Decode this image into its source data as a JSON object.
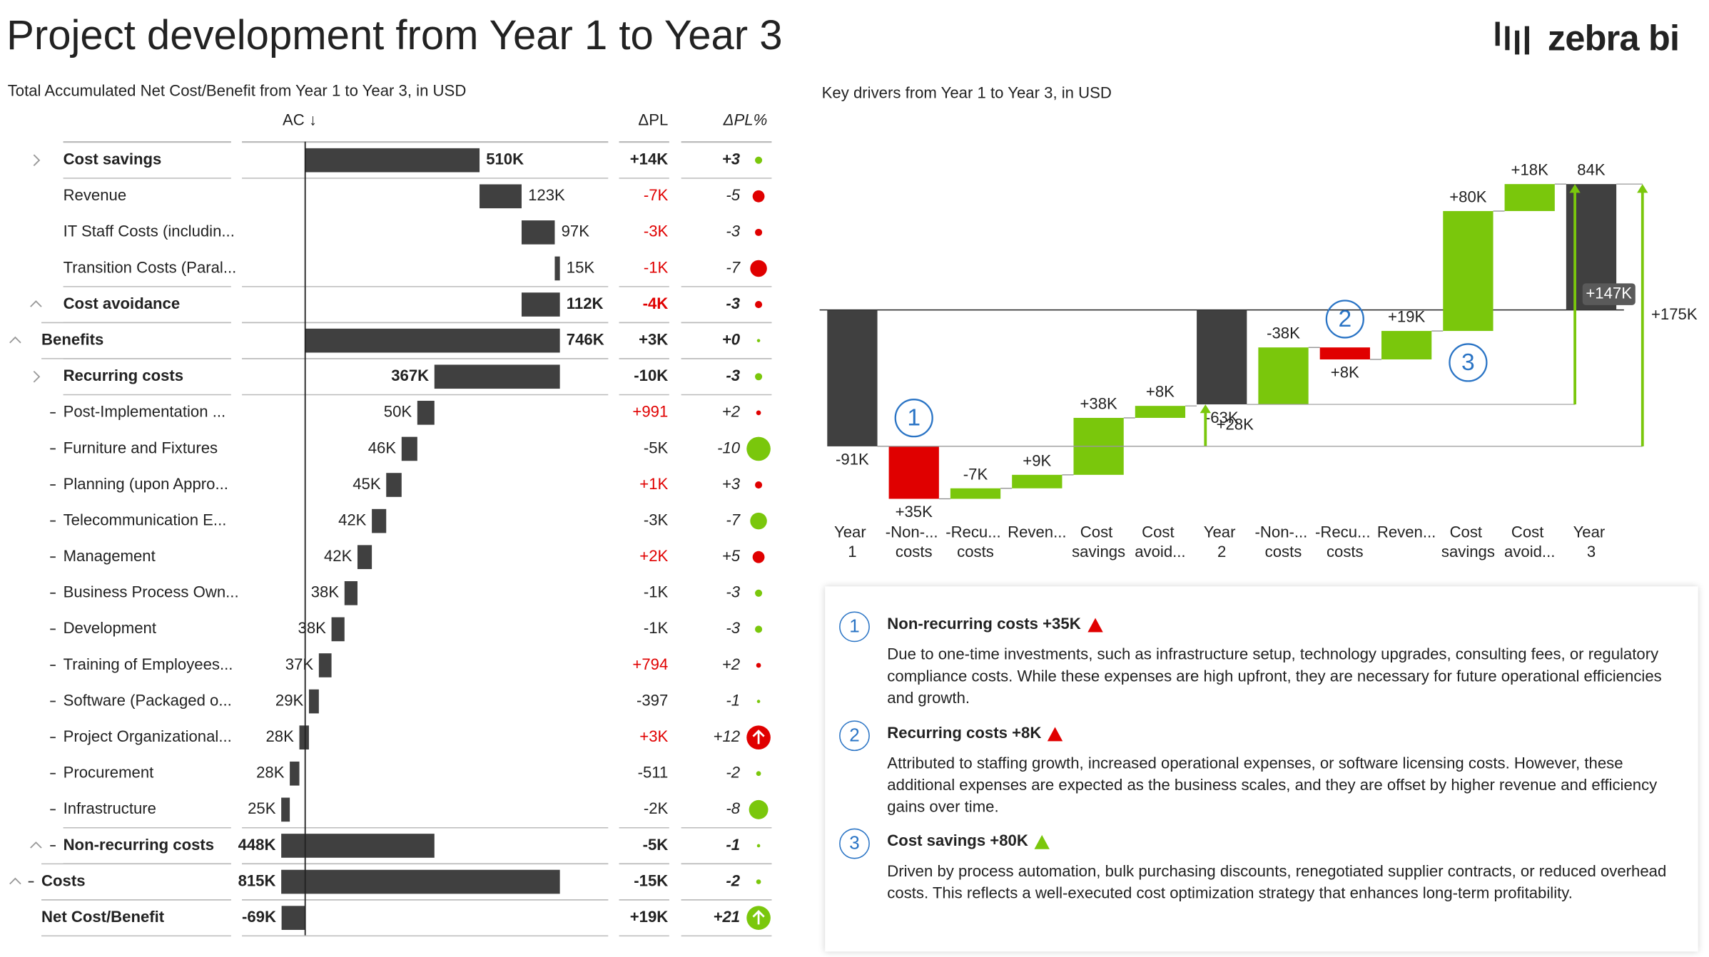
{
  "header": {
    "title": "Project development from Year 1 to Year 3",
    "logo": "zebra bi"
  },
  "table": {
    "title": "Total Accumulated Net Cost/Benefit from Year 1 to Year 3, in USD",
    "columns": [
      "AC ↓",
      "ΔPL",
      "ΔPL%"
    ],
    "good_color": "#7ac70c",
    "bad_color": "#e00000",
    "bar_color": "#404040",
    "rows": [
      {
        "label": "Cost savings",
        "ac": {
          "value": 510000,
          "label": "510K"
        },
        "kind": "item",
        "sign": 1,
        "dpl": "+14K",
        "dpl_pct": {
          "value": 3,
          "label": "+3"
        },
        "bad": false,
        "bold": true,
        "level": 1,
        "toggle": "collapsed"
      },
      {
        "label": "Revenue",
        "ac": {
          "value": 123000,
          "label": "123K"
        },
        "kind": "item",
        "sign": 1,
        "dpl": "-7K",
        "dpl_pct": -5,
        "bad": true,
        "bold": false,
        "level": 1
      },
      {
        "label": "IT Staff Costs (includin...",
        "ac": {
          "value": 97000,
          "label": "97K"
        },
        "kind": "item",
        "sign": 1,
        "dpl": "-3K",
        "dpl_pct": -3,
        "bad": true,
        "bold": false,
        "level": 1
      },
      {
        "label": "Transition Costs (Paral...",
        "ac": {
          "value": 15000,
          "label": "15K"
        },
        "kind": "item",
        "sign": 1,
        "dpl": "-1K",
        "dpl_pct": -7,
        "bad": true,
        "bold": false,
        "level": 1
      },
      {
        "label": "Cost avoidance",
        "ac": {
          "value": 112000,
          "label": "112K"
        },
        "kind": "subtotal",
        "sign": 1,
        "dpl": "-4K",
        "dpl_pct": -3,
        "bad": true,
        "bold": true,
        "level": 1,
        "toggle": "expanded"
      },
      {
        "label": "Benefits",
        "ac": {
          "value": 746000,
          "label": "746K"
        },
        "kind": "subtotal",
        "sign": 1,
        "dpl": "+3K",
        "dpl_pct": {
          "value": 0,
          "label": "+0"
        },
        "bad": false,
        "bold": true,
        "level": 0,
        "toggle": "expanded"
      },
      {
        "label": "Recurring costs",
        "ac": {
          "value": 367000,
          "label": "367K"
        },
        "kind": "item",
        "sign": -1,
        "dpl": "-10K",
        "dpl_pct": -3,
        "bad": false,
        "bold": true,
        "level": 1,
        "toggle": "collapsed"
      },
      {
        "label": "Post-Implementation ...",
        "ac": {
          "value": 50000,
          "label": "50K"
        },
        "kind": "item",
        "sign": -1,
        "dpl": "+991",
        "dpl_pct": {
          "value": 2,
          "label": "+2"
        },
        "bad": true,
        "bold": false,
        "level": 2
      },
      {
        "label": "Furniture and Fixtures",
        "ac": {
          "value": 46000,
          "label": "46K"
        },
        "kind": "item",
        "sign": -1,
        "dpl": "-5K",
        "dpl_pct": -10,
        "bad": false,
        "bold": false,
        "level": 2
      },
      {
        "label": "Planning (upon Appro...",
        "ac": {
          "value": 45000,
          "label": "45K"
        },
        "kind": "item",
        "sign": -1,
        "dpl": "+1K",
        "dpl_pct": {
          "value": 3,
          "label": "+3"
        },
        "bad": true,
        "bold": false,
        "level": 2
      },
      {
        "label": "Telecommunication E...",
        "ac": {
          "value": 42000,
          "label": "42K"
        },
        "kind": "item",
        "sign": -1,
        "dpl": "-3K",
        "dpl_pct": -7,
        "bad": false,
        "bold": false,
        "level": 2
      },
      {
        "label": "Management",
        "ac": {
          "value": 42000,
          "label": "42K"
        },
        "kind": "item",
        "sign": -1,
        "dpl": "+2K",
        "dpl_pct": {
          "value": 5,
          "label": "+5"
        },
        "bad": true,
        "bold": false,
        "level": 2
      },
      {
        "label": "Business Process Own...",
        "ac": {
          "value": 38000,
          "label": "38K"
        },
        "kind": "item",
        "sign": -1,
        "dpl": "-1K",
        "dpl_pct": -3,
        "bad": false,
        "bold": false,
        "level": 2
      },
      {
        "label": "Development",
        "ac": {
          "value": 38000,
          "label": "38K"
        },
        "kind": "item",
        "sign": -1,
        "dpl": "-1K",
        "dpl_pct": -3,
        "bad": false,
        "bold": false,
        "level": 2
      },
      {
        "label": "Training of Employees...",
        "ac": {
          "value": 37000,
          "label": "37K"
        },
        "kind": "item",
        "sign": -1,
        "dpl": "+794",
        "dpl_pct": {
          "value": 2,
          "label": "+2"
        },
        "bad": true,
        "bold": false,
        "level": 2
      },
      {
        "label": "Software (Packaged o...",
        "ac": {
          "value": 29000,
          "label": "29K"
        },
        "kind": "item",
        "sign": -1,
        "dpl": "-397",
        "dpl_pct": -1,
        "bad": false,
        "bold": false,
        "level": 2
      },
      {
        "label": "Project Organizational...",
        "ac": {
          "value": 28000,
          "label": "28K"
        },
        "kind": "item",
        "sign": -1,
        "dpl": "+3K",
        "dpl_pct": {
          "value": 12,
          "label": "+12"
        },
        "bad": true,
        "bold": false,
        "level": 2
      },
      {
        "label": "Procurement",
        "ac": {
          "value": 28000,
          "label": "28K"
        },
        "kind": "item",
        "sign": -1,
        "dpl": "-511",
        "dpl_pct": -2,
        "bad": false,
        "bold": false,
        "level": 2
      },
      {
        "label": "Infrastructure",
        "ac": {
          "value": 25000,
          "label": "25K"
        },
        "kind": "item",
        "sign": -1,
        "dpl": "-2K",
        "dpl_pct": -8,
        "bad": false,
        "bold": false,
        "level": 2
      },
      {
        "label": "Non-recurring costs",
        "ac": {
          "value": 448000,
          "label": "448K"
        },
        "kind": "subtotal",
        "sign": -1,
        "dpl": "-5K",
        "dpl_pct": -1,
        "bad": false,
        "bold": true,
        "level": 1,
        "toggle": "expanded"
      },
      {
        "label": "Costs",
        "ac": {
          "value": 815000,
          "label": "815K"
        },
        "kind": "subtotal",
        "sign": -1,
        "dpl": "-15K",
        "dpl_pct": -2,
        "bad": false,
        "bold": true,
        "level": 0,
        "toggle": "expanded"
      },
      {
        "label": "Net Cost/Benefit",
        "ac": {
          "value": -69000,
          "label": "-69K"
        },
        "kind": "total",
        "dpl": "+19K",
        "dpl_pct": {
          "value": 21,
          "label": "+21"
        },
        "bad": false,
        "bold": true,
        "level": 0
      }
    ]
  },
  "chart_data": {
    "type": "waterfall",
    "title": "Key drivers from Year 1 to Year 3, in USD",
    "categories": [
      "Year 1",
      "-Non-... costs",
      "-Recu... costs",
      "Reven...",
      "Cost savings",
      "Cost avoid...",
      "Year 2",
      "-Non-... costs",
      "-Recu... costs",
      "Reven...",
      "Cost savings",
      "Cost avoid...",
      "Year 3"
    ],
    "kinds": [
      "total",
      "cost",
      "cost",
      "benefit",
      "benefit",
      "benefit",
      "total",
      "cost",
      "cost",
      "benefit",
      "benefit",
      "benefit",
      "total"
    ],
    "values": [
      -91000,
      35000,
      -7000,
      9000,
      38000,
      8000,
      -63000,
      -38000,
      8000,
      19000,
      80000,
      18000,
      84000
    ],
    "value_labels": [
      "-91K",
      "+35K",
      "-7K",
      "+9K",
      "+38K",
      "+8K",
      "-63K",
      "-38K",
      "+8K",
      "+19K",
      "+80K",
      "+18K",
      "84K"
    ],
    "ylim": [
      -135000,
      105000
    ],
    "colors": {
      "total": "#404040",
      "positive": "#7ac70c",
      "negative": "#e00000",
      "marker": "#2a74c5"
    },
    "markers": [
      {
        "category": 1,
        "label": "1",
        "position": "above"
      },
      {
        "category": 8,
        "label": "2",
        "position": "above"
      },
      {
        "category": 10,
        "label": "3",
        "position": "below"
      }
    ],
    "deltas": [
      {
        "from": 0,
        "to": 6,
        "value": 28000,
        "label": "+28K",
        "side": "left"
      },
      {
        "from": 6,
        "to": 12,
        "value": 147000,
        "label": "+147K",
        "side": "left"
      },
      {
        "from": 0,
        "to": 12,
        "value": 175000,
        "label": "+175K",
        "side": "right"
      }
    ]
  },
  "notes": [
    {
      "number": "1",
      "title": "Non-recurring costs +35K",
      "color": "#e00000",
      "text": "Due to one-time investments, such as infrastructure setup, technology upgrades, consulting fees, or regulatory compliance costs. While these expenses are high upfront, they are necessary for future operational efficiencies and growth."
    },
    {
      "number": "2",
      "title": "Recurring costs +8K",
      "color": "#e00000",
      "text": "Attributed to staffing growth, increased operational expenses, or software licensing costs. However, these additional expenses are expected as the business scales, and they are offset by higher revenue and efficiency gains over time."
    },
    {
      "number": "3",
      "title": "Cost savings +80K",
      "color": "#7ac70c",
      "text": "Driven by process automation, bulk purchasing discounts, renegotiated supplier contracts, or reduced overhead costs. This reflects a well-executed cost optimization strategy that enhances long-term profitability."
    }
  ]
}
